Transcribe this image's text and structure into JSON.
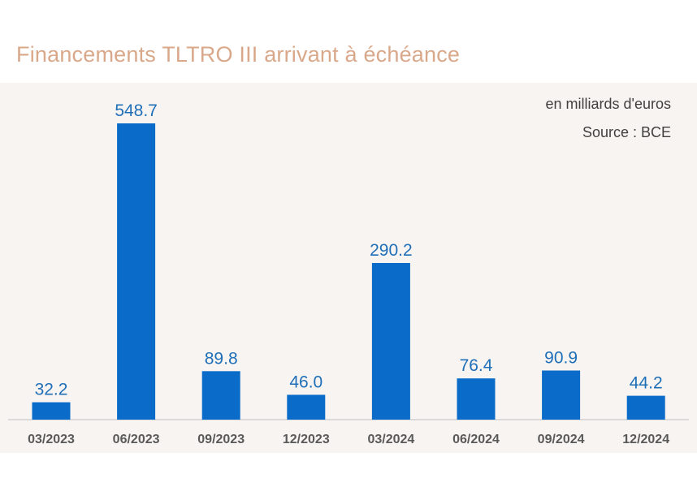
{
  "chart_data": {
    "type": "bar",
    "title": "Financements TLTRO III arrivant à échéance",
    "unit_note": "en milliards d'euros",
    "source_note": "Source : BCE",
    "categories": [
      "03/2023",
      "06/2023",
      "09/2023",
      "12/2023",
      "03/2024",
      "06/2024",
      "09/2024",
      "12/2024"
    ],
    "values": [
      32.2,
      548.7,
      89.8,
      46.0,
      290.2,
      76.4,
      90.9,
      44.2
    ],
    "labels": [
      "32.2",
      "548.7",
      "89.8",
      "46.0",
      "290.2",
      "76.4",
      "90.9",
      "44.2"
    ],
    "xlabel": "",
    "ylabel": "",
    "ylim": [
      0,
      548.7
    ],
    "grid": false,
    "colors": {
      "bar": "#0A6CC8",
      "value_label": "#1F6FB8",
      "tick_label": "#595959",
      "title": "#D9A88A",
      "axis": "#BFBFBF"
    }
  }
}
